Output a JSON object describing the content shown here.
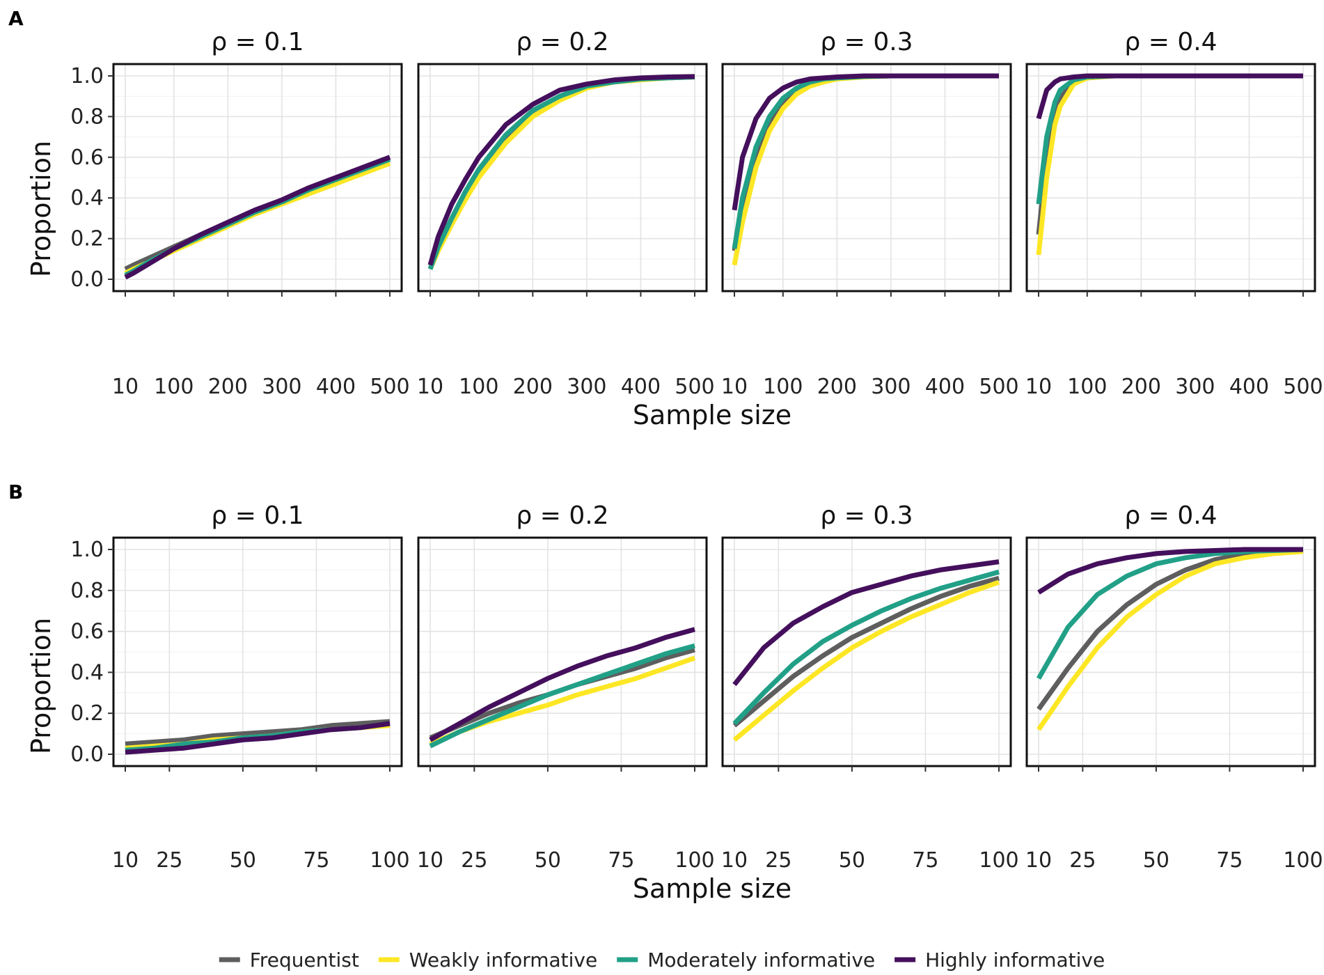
{
  "legend": {
    "position": "bottom",
    "entries": [
      {
        "label": "Frequentist",
        "color": "#5e5e5e"
      },
      {
        "label": "Weakly informative",
        "color": "#fde725"
      },
      {
        "label": "Moderately informative",
        "color": "#21a087"
      },
      {
        "label": "Highly informative",
        "color": "#440f5c"
      }
    ]
  },
  "chart_data": [
    {
      "type": "line",
      "panel_label": "A",
      "xlabel": "Sample size",
      "ylabel": "Proportion",
      "xlim": [
        10,
        500
      ],
      "xticks": [
        "10",
        "100",
        "200",
        "300",
        "400",
        "500"
      ],
      "xtick_values": [
        10,
        100,
        200,
        300,
        400,
        500
      ],
      "ylim": [
        0,
        1
      ],
      "yticks": [
        "0.0",
        "0.2",
        "0.4",
        "0.6",
        "0.8",
        "1.0"
      ],
      "ytick_values": [
        0,
        0.2,
        0.4,
        0.6,
        0.8,
        1.0
      ],
      "grid": true,
      "facets": [
        {
          "title": "ρ = 0.1",
          "x": [
            10,
            25,
            50,
            100,
            150,
            200,
            250,
            300,
            350,
            400,
            450,
            500
          ],
          "series": [
            {
              "name": "Frequentist",
              "values": [
                0.05,
                0.07,
                0.1,
                0.16,
                0.22,
                0.28,
                0.34,
                0.39,
                0.45,
                0.5,
                0.55,
                0.6
              ]
            },
            {
              "name": "Weakly informative",
              "values": [
                0.03,
                0.05,
                0.08,
                0.14,
                0.2,
                0.26,
                0.32,
                0.37,
                0.42,
                0.47,
                0.52,
                0.57
              ]
            },
            {
              "name": "Moderately informative",
              "values": [
                0.02,
                0.04,
                0.08,
                0.15,
                0.21,
                0.27,
                0.33,
                0.38,
                0.44,
                0.49,
                0.54,
                0.59
              ]
            },
            {
              "name": "Highly informative",
              "values": [
                0.01,
                0.03,
                0.07,
                0.15,
                0.22,
                0.28,
                0.34,
                0.39,
                0.45,
                0.5,
                0.55,
                0.6
              ]
            }
          ]
        },
        {
          "title": "ρ = 0.2",
          "x": [
            10,
            25,
            50,
            75,
            100,
            150,
            200,
            250,
            300,
            350,
            400,
            450,
            500
          ],
          "series": [
            {
              "name": "Frequentist",
              "values": [
                0.07,
                0.17,
                0.3,
                0.42,
                0.53,
                0.7,
                0.82,
                0.9,
                0.95,
                0.97,
                0.985,
                0.99,
                0.995
              ]
            },
            {
              "name": "Weakly informative",
              "values": [
                0.05,
                0.14,
                0.27,
                0.39,
                0.5,
                0.67,
                0.8,
                0.88,
                0.94,
                0.97,
                0.98,
                0.99,
                0.995
              ]
            },
            {
              "name": "Moderately informative",
              "values": [
                0.05,
                0.16,
                0.3,
                0.43,
                0.54,
                0.71,
                0.83,
                0.9,
                0.95,
                0.97,
                0.985,
                0.99,
                0.995
              ]
            },
            {
              "name": "Highly informative",
              "values": [
                0.07,
                0.21,
                0.37,
                0.49,
                0.6,
                0.76,
                0.86,
                0.93,
                0.96,
                0.98,
                0.99,
                0.995,
                0.997
              ]
            }
          ]
        },
        {
          "title": "ρ = 0.3",
          "x": [
            10,
            25,
            50,
            75,
            100,
            125,
            150,
            175,
            200,
            250,
            300,
            400,
            500
          ],
          "series": [
            {
              "name": "Frequentist",
              "values": [
                0.14,
                0.35,
                0.61,
                0.77,
                0.87,
                0.93,
                0.96,
                0.98,
                0.99,
                0.997,
                1.0,
                1.0,
                1.0
              ]
            },
            {
              "name": "Weakly informative",
              "values": [
                0.07,
                0.28,
                0.55,
                0.73,
                0.84,
                0.91,
                0.95,
                0.97,
                0.985,
                0.995,
                1.0,
                1.0,
                1.0
              ]
            },
            {
              "name": "Moderately informative",
              "values": [
                0.15,
                0.4,
                0.65,
                0.8,
                0.89,
                0.94,
                0.97,
                0.985,
                0.99,
                0.997,
                1.0,
                1.0,
                1.0
              ]
            },
            {
              "name": "Highly informative",
              "values": [
                0.34,
                0.6,
                0.79,
                0.89,
                0.94,
                0.97,
                0.985,
                0.99,
                0.995,
                1.0,
                1.0,
                1.0,
                1.0
              ]
            }
          ]
        },
        {
          "title": "ρ = 0.4",
          "x": [
            10,
            25,
            40,
            50,
            75,
            100,
            150,
            200,
            300,
            400,
            500
          ],
          "series": [
            {
              "name": "Frequentist",
              "values": [
                0.22,
                0.6,
                0.82,
                0.89,
                0.97,
                0.99,
                1.0,
                1.0,
                1.0,
                1.0,
                1.0
              ]
            },
            {
              "name": "Weakly informative",
              "values": [
                0.12,
                0.5,
                0.76,
                0.85,
                0.96,
                0.99,
                1.0,
                1.0,
                1.0,
                1.0,
                1.0
              ]
            },
            {
              "name": "Moderately informative",
              "values": [
                0.37,
                0.7,
                0.87,
                0.93,
                0.98,
                0.995,
                1.0,
                1.0,
                1.0,
                1.0,
                1.0
              ]
            },
            {
              "name": "Highly informative",
              "values": [
                0.79,
                0.93,
                0.97,
                0.985,
                0.995,
                1.0,
                1.0,
                1.0,
                1.0,
                1.0,
                1.0
              ]
            }
          ]
        }
      ]
    },
    {
      "type": "line",
      "panel_label": "B",
      "xlabel": "Sample size",
      "ylabel": "Proportion",
      "xlim": [
        10,
        100
      ],
      "xticks": [
        "10",
        "25",
        "50",
        "75",
        "100"
      ],
      "xtick_values": [
        10,
        25,
        50,
        75,
        100
      ],
      "ylim": [
        0,
        1
      ],
      "yticks": [
        "0.0",
        "0.2",
        "0.4",
        "0.6",
        "0.8",
        "1.0"
      ],
      "ytick_values": [
        0,
        0.2,
        0.4,
        0.6,
        0.8,
        1.0
      ],
      "grid": true,
      "facets": [
        {
          "title": "ρ = 0.1",
          "x": [
            10,
            20,
            30,
            40,
            50,
            60,
            70,
            80,
            90,
            100
          ],
          "series": [
            {
              "name": "Frequentist",
              "values": [
                0.05,
                0.06,
                0.07,
                0.09,
                0.1,
                0.11,
                0.12,
                0.14,
                0.15,
                0.16
              ]
            },
            {
              "name": "Weakly informative",
              "values": [
                0.03,
                0.04,
                0.05,
                0.07,
                0.08,
                0.09,
                0.11,
                0.12,
                0.13,
                0.14
              ]
            },
            {
              "name": "Moderately informative",
              "values": [
                0.02,
                0.03,
                0.05,
                0.06,
                0.08,
                0.09,
                0.11,
                0.12,
                0.13,
                0.15
              ]
            },
            {
              "name": "Highly informative",
              "values": [
                0.01,
                0.02,
                0.03,
                0.05,
                0.07,
                0.08,
                0.1,
                0.12,
                0.13,
                0.15
              ]
            }
          ]
        },
        {
          "title": "ρ = 0.2",
          "x": [
            10,
            20,
            30,
            40,
            50,
            60,
            70,
            80,
            90,
            100
          ],
          "series": [
            {
              "name": "Frequentist",
              "values": [
                0.08,
                0.14,
                0.2,
                0.25,
                0.29,
                0.34,
                0.38,
                0.42,
                0.47,
                0.51
              ]
            },
            {
              "name": "Weakly informative",
              "values": [
                0.05,
                0.11,
                0.16,
                0.2,
                0.24,
                0.29,
                0.33,
                0.37,
                0.42,
                0.47
              ]
            },
            {
              "name": "Moderately informative",
              "values": [
                0.04,
                0.11,
                0.17,
                0.23,
                0.29,
                0.34,
                0.39,
                0.44,
                0.49,
                0.53
              ]
            },
            {
              "name": "Highly informative",
              "values": [
                0.07,
                0.15,
                0.23,
                0.3,
                0.37,
                0.43,
                0.48,
                0.52,
                0.57,
                0.61
              ]
            }
          ]
        },
        {
          "title": "ρ = 0.3",
          "x": [
            10,
            20,
            30,
            40,
            50,
            60,
            70,
            80,
            90,
            100
          ],
          "series": [
            {
              "name": "Frequentist",
              "values": [
                0.14,
                0.26,
                0.38,
                0.48,
                0.57,
                0.64,
                0.71,
                0.77,
                0.82,
                0.86
              ]
            },
            {
              "name": "Weakly informative",
              "values": [
                0.07,
                0.19,
                0.31,
                0.42,
                0.52,
                0.6,
                0.67,
                0.73,
                0.79,
                0.84
              ]
            },
            {
              "name": "Moderately informative",
              "values": [
                0.15,
                0.3,
                0.44,
                0.55,
                0.63,
                0.7,
                0.76,
                0.81,
                0.85,
                0.89
              ]
            },
            {
              "name": "Highly informative",
              "values": [
                0.34,
                0.52,
                0.64,
                0.72,
                0.79,
                0.83,
                0.87,
                0.9,
                0.92,
                0.94
              ]
            }
          ]
        },
        {
          "title": "ρ = 0.4",
          "x": [
            10,
            20,
            30,
            40,
            50,
            60,
            70,
            80,
            90,
            100
          ],
          "series": [
            {
              "name": "Frequentist",
              "values": [
                0.22,
                0.42,
                0.6,
                0.73,
                0.83,
                0.9,
                0.95,
                0.98,
                0.99,
                0.995
              ]
            },
            {
              "name": "Weakly informative",
              "values": [
                0.12,
                0.33,
                0.52,
                0.67,
                0.78,
                0.87,
                0.93,
                0.96,
                0.98,
                0.99
              ]
            },
            {
              "name": "Moderately informative",
              "values": [
                0.37,
                0.62,
                0.78,
                0.87,
                0.93,
                0.96,
                0.98,
                0.99,
                0.995,
                1.0
              ]
            },
            {
              "name": "Highly informative",
              "values": [
                0.79,
                0.88,
                0.93,
                0.96,
                0.98,
                0.99,
                0.995,
                1.0,
                1.0,
                1.0
              ]
            }
          ]
        }
      ]
    }
  ]
}
